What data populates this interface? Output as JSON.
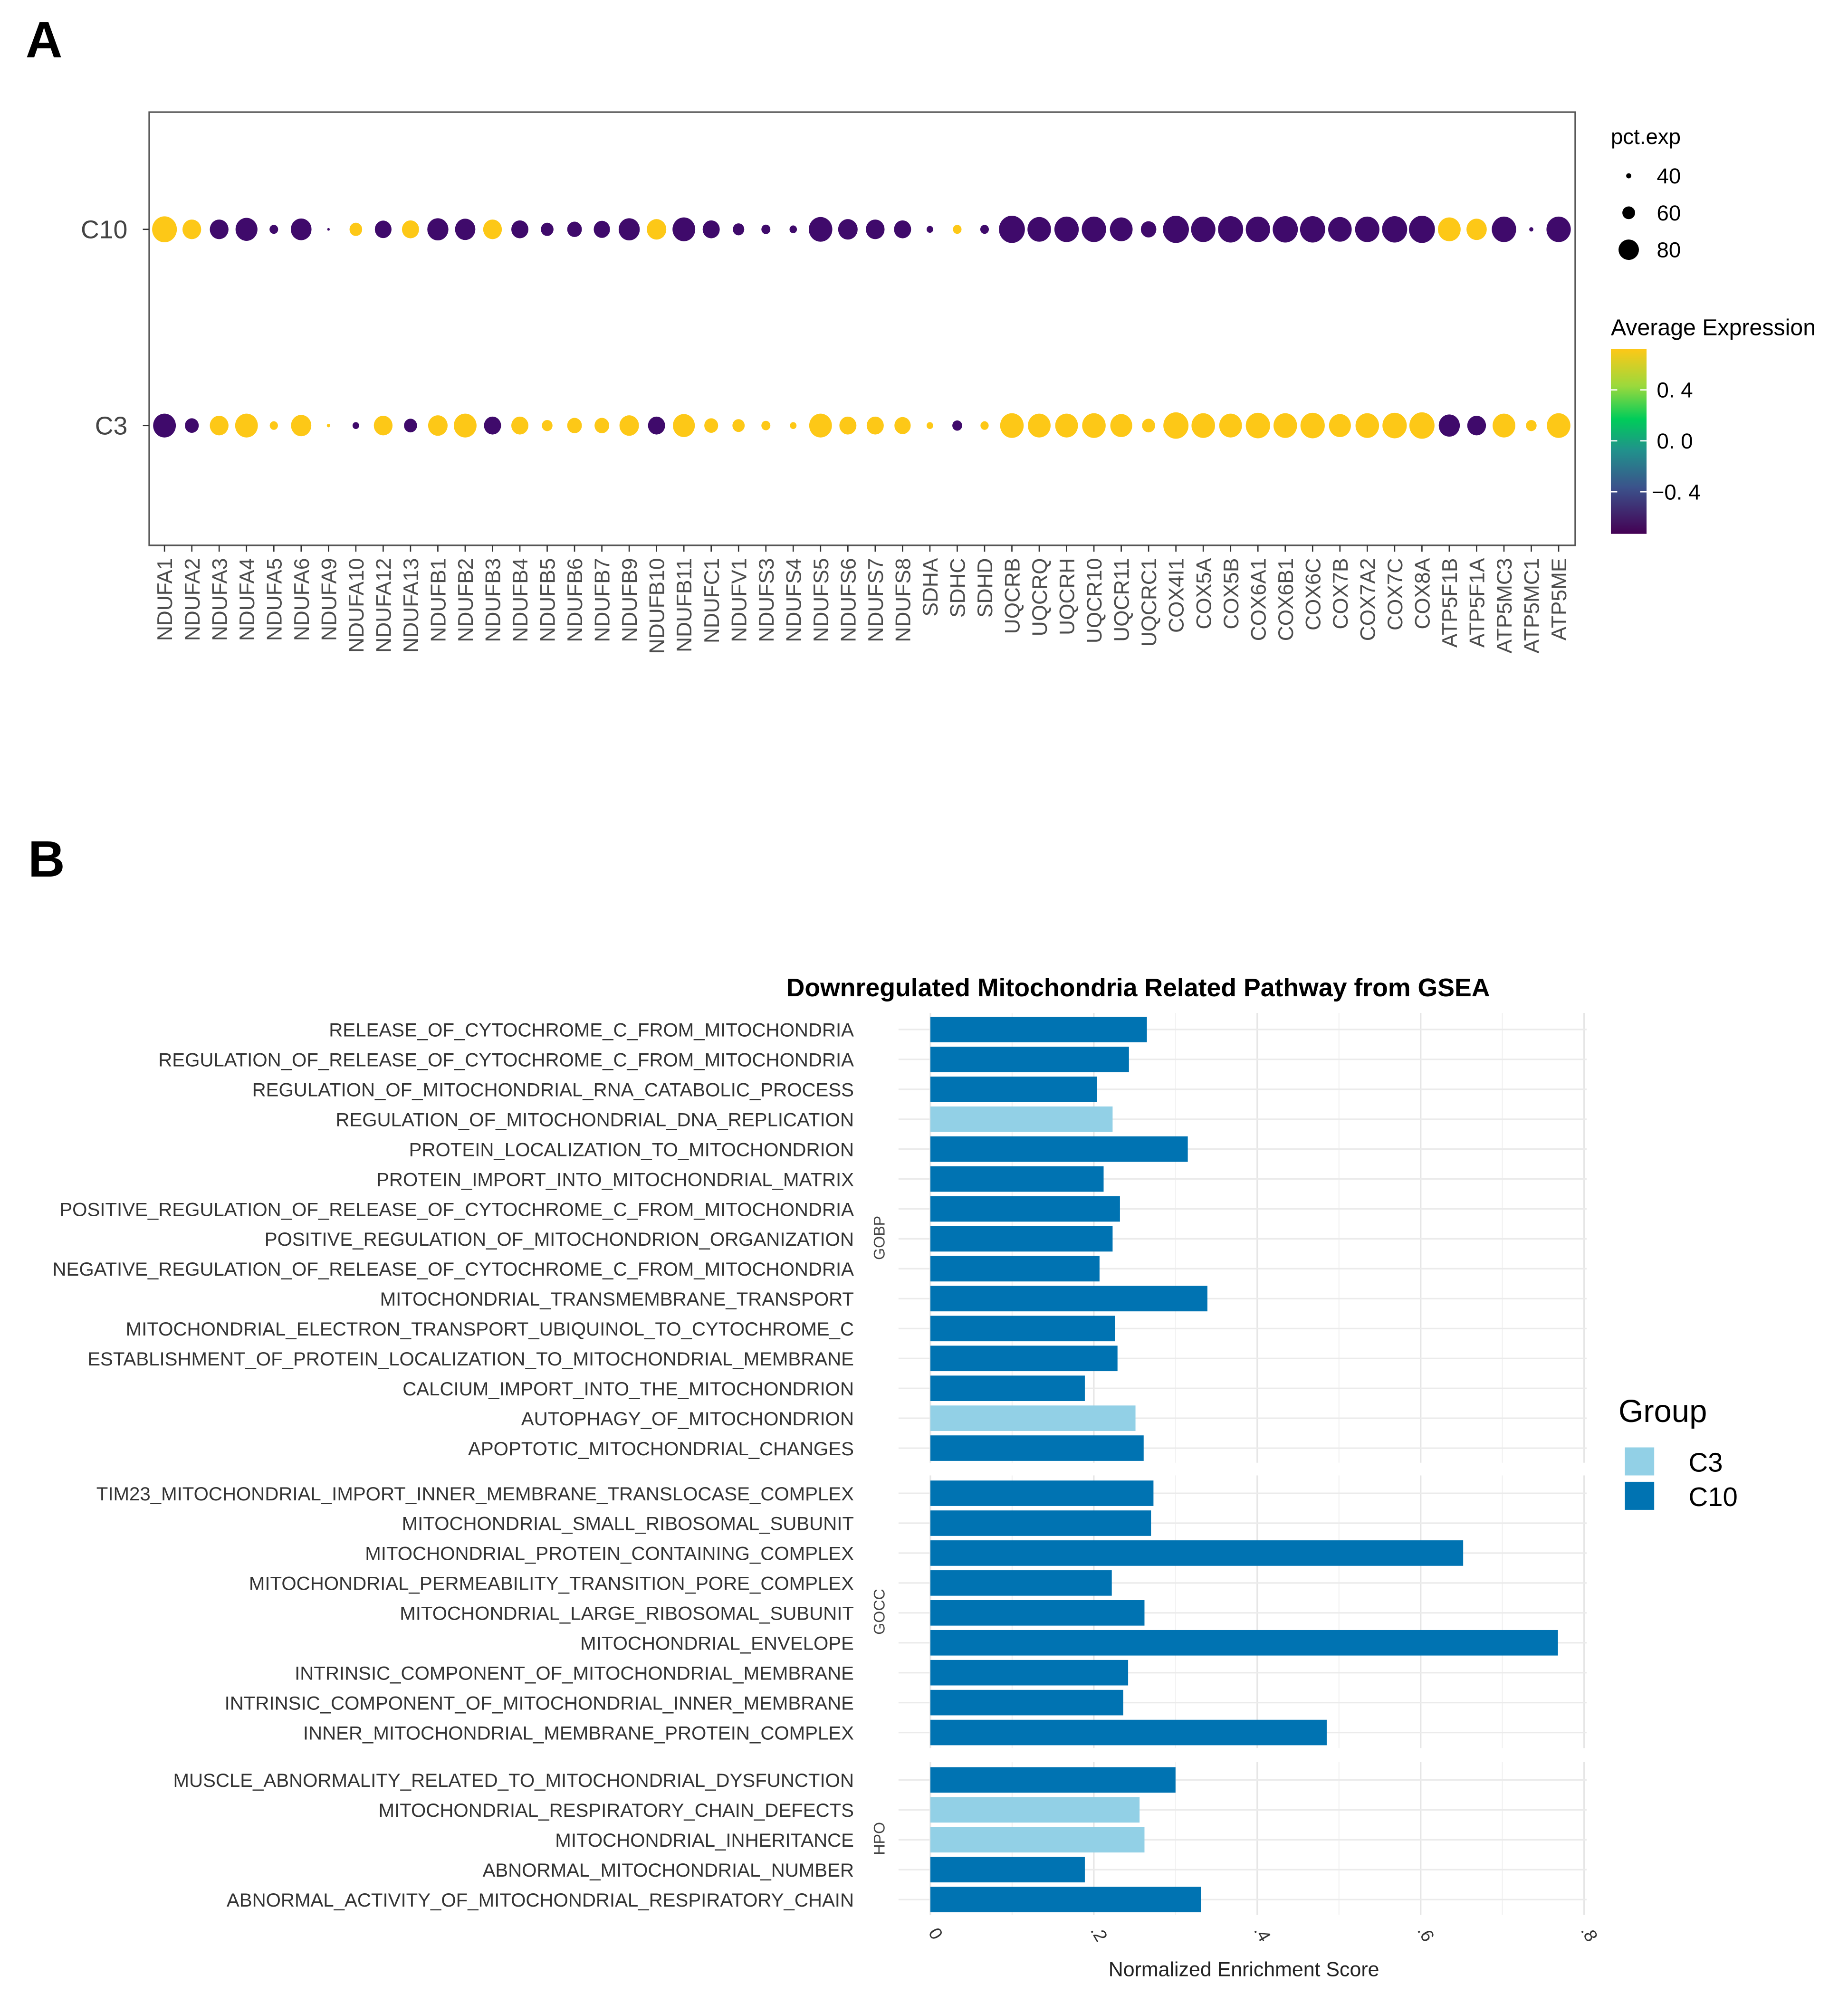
{
  "panel_labels": {
    "a": "A",
    "b": "B"
  },
  "colors": {
    "high": "#fdc817",
    "low": "#3f0a6b",
    "C3": "#92d0e6",
    "C10": "#0073b2",
    "grid": "#ebebeb",
    "strip_bg": "#ffffff"
  },
  "chart_data": [
    {
      "type": "scatter",
      "subtype": "dotplot",
      "title": "",
      "rows": [
        "C10",
        "C3"
      ],
      "genes": [
        "NDUFA1",
        "NDUFA2",
        "NDUFA3",
        "NDUFA4",
        "NDUFA5",
        "NDUFA6",
        "NDUFA9",
        "NDUFA10",
        "NDUFA12",
        "NDUFA13",
        "NDUFB1",
        "NDUFB2",
        "NDUFB3",
        "NDUFB4",
        "NDUFB5",
        "NDUFB6",
        "NDUFB7",
        "NDUFB9",
        "NDUFB10",
        "NDUFB11",
        "NDUFC1",
        "NDUFV1",
        "NDUFS3",
        "NDUFS4",
        "NDUFS5",
        "NDUFS6",
        "NDUFS7",
        "NDUFS8",
        "SDHA",
        "SDHC",
        "SDHD",
        "UQCRB",
        "UQCRQ",
        "UQCRH",
        "UQCR10",
        "UQCR11",
        "UQCRC1",
        "COX4I1",
        "COX5A",
        "COX5B",
        "COX6A1",
        "COX6B1",
        "COX6C",
        "COX7B",
        "COX7A2",
        "COX7C",
        "COX8A",
        "ATP5F1B",
        "ATP5F1A",
        "ATP5MC3",
        "ATP5MC1",
        "ATP5ME"
      ],
      "pct_exp": {
        "C10": [
          85,
          70,
          70,
          78,
          45,
          75,
          30,
          55,
          65,
          66,
          76,
          74,
          70,
          66,
          55,
          60,
          64,
          76,
          72,
          80,
          66,
          52,
          46,
          42,
          82,
          72,
          70,
          66,
          40,
          45,
          45,
          88,
          82,
          84,
          84,
          80,
          62,
          88,
          84,
          86,
          84,
          86,
          86,
          82,
          84,
          86,
          88,
          80,
          74,
          84,
          34,
          84
        ],
        "C3": [
          80,
          58,
          70,
          80,
          44,
          74,
          32,
          40,
          70,
          56,
          72,
          80,
          66,
          66,
          50,
          60,
          60,
          72,
          66,
          78,
          58,
          54,
          46,
          40,
          80,
          66,
          66,
          64,
          40,
          48,
          44,
          82,
          80,
          80,
          82,
          78,
          56,
          86,
          82,
          80,
          84,
          82,
          84,
          78,
          82,
          84,
          86,
          76,
          70,
          80,
          50,
          82
        ]
      },
      "avg_exp": {
        "C10": [
          0.71,
          0.71,
          -0.71,
          -0.71,
          -0.71,
          -0.71,
          -0.71,
          0.71,
          -0.71,
          0.71,
          -0.71,
          -0.71,
          0.71,
          -0.71,
          -0.71,
          -0.71,
          -0.71,
          -0.71,
          0.71,
          -0.71,
          -0.71,
          -0.71,
          -0.71,
          -0.71,
          -0.71,
          -0.71,
          -0.71,
          -0.71,
          -0.71,
          0.71,
          -0.71,
          -0.71,
          -0.71,
          -0.71,
          -0.71,
          -0.71,
          -0.71,
          -0.71,
          -0.71,
          -0.71,
          -0.71,
          -0.71,
          -0.71,
          -0.71,
          -0.71,
          -0.71,
          -0.71,
          0.71,
          0.71,
          -0.71,
          -0.71,
          -0.71
        ],
        "C3": [
          -0.71,
          -0.71,
          0.71,
          0.71,
          0.71,
          0.71,
          0.71,
          -0.71,
          0.71,
          -0.71,
          0.71,
          0.71,
          -0.71,
          0.71,
          0.71,
          0.71,
          0.71,
          0.71,
          -0.71,
          0.71,
          0.71,
          0.71,
          0.71,
          0.71,
          0.71,
          0.71,
          0.71,
          0.71,
          0.71,
          -0.71,
          0.71,
          0.71,
          0.71,
          0.71,
          0.71,
          0.71,
          0.71,
          0.71,
          0.71,
          0.71,
          0.71,
          0.71,
          0.71,
          0.71,
          0.71,
          0.71,
          0.71,
          -0.71,
          -0.71,
          0.71,
          0.71,
          0.71
        ]
      },
      "size_legend": {
        "title": "pct.exp",
        "values": [
          "40",
          "60",
          "80"
        ]
      },
      "color_legend": {
        "title": "Average Expression",
        "ticks": [
          "0. 4",
          "0. 0",
          "−0. 4"
        ],
        "range": [
          -0.71,
          0.71
        ]
      }
    },
    {
      "type": "bar",
      "orientation": "horizontal",
      "title": "Downregulated Mitochondria Related Pathway from GSEA",
      "xlabel": "Normalized Enrichment Score",
      "ylabel": "",
      "xlim": [
        0,
        0.8
      ],
      "xticks": [
        "0",
        ".2",
        ".4",
        ".6",
        ".8"
      ],
      "xtick_values": [
        0,
        0.2,
        0.4,
        0.6,
        0.8
      ],
      "grid": true,
      "legend": {
        "title": "Group",
        "entries": [
          "C3",
          "C10"
        ],
        "placement": "right"
      },
      "facets": [
        {
          "name": "GOBP",
          "bars": [
            {
              "label": "RELEASE_OF_CYTOCHROME_C_FROM_MITOCHONDRIA",
              "value": 0.265,
              "group": "C10"
            },
            {
              "label": "REGULATION_OF_RELEASE_OF_CYTOCHROME_C_FROM_MITOCHONDRIA",
              "value": 0.243,
              "group": "C10"
            },
            {
              "label": "REGULATION_OF_MITOCHONDRIAL_RNA_CATABOLIC_PROCESS",
              "value": 0.204,
              "group": "C10"
            },
            {
              "label": "REGULATION_OF_MITOCHONDRIAL_DNA_REPLICATION",
              "value": 0.223,
              "group": "C3"
            },
            {
              "label": "PROTEIN_LOCALIZATION_TO_MITOCHONDRION",
              "value": 0.315,
              "group": "C10"
            },
            {
              "label": "PROTEIN_IMPORT_INTO_MITOCHONDRIAL_MATRIX",
              "value": 0.212,
              "group": "C10"
            },
            {
              "label": "POSITIVE_REGULATION_OF_RELEASE_OF_CYTOCHROME_C_FROM_MITOCHONDRIA",
              "value": 0.232,
              "group": "C10"
            },
            {
              "label": "POSITIVE_REGULATION_OF_MITOCHONDRION_ORGANIZATION",
              "value": 0.223,
              "group": "C10"
            },
            {
              "label": "NEGATIVE_REGULATION_OF_RELEASE_OF_CYTOCHROME_C_FROM_MITOCHONDRIA",
              "value": 0.207,
              "group": "C10"
            },
            {
              "label": "MITOCHONDRIAL_TRANSMEMBRANE_TRANSPORT",
              "value": 0.339,
              "group": "C10"
            },
            {
              "label": "MITOCHONDRIAL_ELECTRON_TRANSPORT_UBIQUINOL_TO_CYTOCHROME_C",
              "value": 0.226,
              "group": "C10"
            },
            {
              "label": "ESTABLISHMENT_OF_PROTEIN_LOCALIZATION_TO_MITOCHONDRIAL_MEMBRANE",
              "value": 0.229,
              "group": "C10"
            },
            {
              "label": "CALCIUM_IMPORT_INTO_THE_MITOCHONDRION",
              "value": 0.189,
              "group": "C10"
            },
            {
              "label": "AUTOPHAGY_OF_MITOCHONDRION",
              "value": 0.251,
              "group": "C3"
            },
            {
              "label": "APOPTOTIC_MITOCHONDRIAL_CHANGES",
              "value": 0.261,
              "group": "C10"
            }
          ]
        },
        {
          "name": "GOCC",
          "bars": [
            {
              "label": "TIM23_MITOCHONDRIAL_IMPORT_INNER_MEMBRANE_TRANSLOCASE_COMPLEX",
              "value": 0.273,
              "group": "C10"
            },
            {
              "label": "MITOCHONDRIAL_SMALL_RIBOSOMAL_SUBUNIT",
              "value": 0.27,
              "group": "C10"
            },
            {
              "label": "MITOCHONDRIAL_PROTEIN_CONTAINING_COMPLEX",
              "value": 0.652,
              "group": "C10"
            },
            {
              "label": "MITOCHONDRIAL_PERMEABILITY_TRANSITION_PORE_COMPLEX",
              "value": 0.222,
              "group": "C10"
            },
            {
              "label": "MITOCHONDRIAL_LARGE_RIBOSOMAL_SUBUNIT",
              "value": 0.262,
              "group": "C10"
            },
            {
              "label": "MITOCHONDRIAL_ENVELOPE",
              "value": 0.768,
              "group": "C10"
            },
            {
              "label": "INTRINSIC_COMPONENT_OF_MITOCHONDRIAL_MEMBRANE",
              "value": 0.242,
              "group": "C10"
            },
            {
              "label": "INTRINSIC_COMPONENT_OF_MITOCHONDRIAL_INNER_MEMBRANE",
              "value": 0.236,
              "group": "C10"
            },
            {
              "label": "INNER_MITOCHONDRIAL_MEMBRANE_PROTEIN_COMPLEX",
              "value": 0.485,
              "group": "C10"
            }
          ]
        },
        {
          "name": "HPO",
          "bars": [
            {
              "label": "MUSCLE_ABNORMALITY_RELATED_TO_MITOCHONDRIAL_DYSFUNCTION",
              "value": 0.3,
              "group": "C10"
            },
            {
              "label": "MITOCHONDRIAL_RESPIRATORY_CHAIN_DEFECTS",
              "value": 0.256,
              "group": "C3"
            },
            {
              "label": "MITOCHONDRIAL_INHERITANCE",
              "value": 0.262,
              "group": "C3"
            },
            {
              "label": "ABNORMAL_MITOCHONDRIAL_NUMBER",
              "value": 0.189,
              "group": "C10"
            },
            {
              "label": "ABNORMAL_ACTIVITY_OF_MITOCHONDRIAL_RESPIRATORY_CHAIN",
              "value": 0.331,
              "group": "C10"
            }
          ]
        }
      ]
    }
  ]
}
